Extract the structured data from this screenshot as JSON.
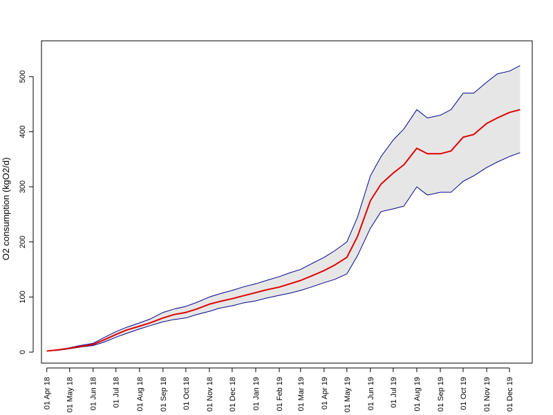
{
  "chart_data": {
    "type": "line",
    "title": "",
    "xlabel": "",
    "ylabel": "O2 consumption (kgO2/d)",
    "x_range": [
      "2018-03-25",
      "2019-12-31"
    ],
    "ylim": [
      -20,
      565
    ],
    "y_ticks": [
      0,
      100,
      200,
      300,
      400,
      500
    ],
    "x_ticks": [
      {
        "date": "2018-04-01",
        "label": "01 Apr 18"
      },
      {
        "date": "2018-05-01",
        "label": "01 May 18"
      },
      {
        "date": "2018-06-01",
        "label": "01 Jun 18"
      },
      {
        "date": "2018-07-01",
        "label": "01 Jul 18"
      },
      {
        "date": "2018-08-01",
        "label": "01 Aug 18"
      },
      {
        "date": "2018-09-01",
        "label": "01 Sep 18"
      },
      {
        "date": "2018-10-01",
        "label": "01 Oct 18"
      },
      {
        "date": "2018-11-01",
        "label": "01 Nov 18"
      },
      {
        "date": "2018-12-01",
        "label": "01 Dec 18"
      },
      {
        "date": "2019-01-01",
        "label": "01 Jan 19"
      },
      {
        "date": "2019-02-01",
        "label": "01 Feb 19"
      },
      {
        "date": "2019-03-01",
        "label": "01 Mar 19"
      },
      {
        "date": "2019-04-01",
        "label": "01 Apr 19"
      },
      {
        "date": "2019-05-01",
        "label": "01 May 19"
      },
      {
        "date": "2019-06-01",
        "label": "01 Jun 19"
      },
      {
        "date": "2019-07-01",
        "label": "01 Jul 19"
      },
      {
        "date": "2019-08-01",
        "label": "01 Aug 19"
      },
      {
        "date": "2019-09-01",
        "label": "01 Sep 19"
      },
      {
        "date": "2019-10-01",
        "label": "01 Oct 19"
      },
      {
        "date": "2019-11-01",
        "label": "01 Nov 19"
      },
      {
        "date": "2019-12-01",
        "label": "01 Dec 19"
      }
    ],
    "band_fill_color": "#e6e6e6",
    "series": [
      {
        "role": "lower_bound",
        "color": "#00008b",
        "x": [
          "2018-04-01",
          "2018-04-15",
          "2018-05-01",
          "2018-05-15",
          "2018-06-01",
          "2018-06-15",
          "2018-07-01",
          "2018-07-15",
          "2018-08-01",
          "2018-08-15",
          "2018-09-01",
          "2018-09-15",
          "2018-10-01",
          "2018-10-15",
          "2018-11-01",
          "2018-11-15",
          "2018-12-01",
          "2018-12-15",
          "2019-01-01",
          "2019-01-15",
          "2019-02-01",
          "2019-02-15",
          "2019-03-01",
          "2019-03-15",
          "2019-04-01",
          "2019-04-15",
          "2019-05-01",
          "2019-05-15",
          "2019-06-01",
          "2019-06-15",
          "2019-07-01",
          "2019-07-15",
          "2019-08-01",
          "2019-08-15",
          "2019-09-01",
          "2019-09-15",
          "2019-10-01",
          "2019-10-15",
          "2019-11-01",
          "2019-11-15",
          "2019-12-01",
          "2019-12-15"
        ],
        "y": [
          2,
          3,
          6,
          9,
          12,
          18,
          27,
          34,
          42,
          48,
          55,
          59,
          62,
          68,
          74,
          80,
          84,
          89,
          93,
          98,
          103,
          107,
          112,
          118,
          126,
          132,
          142,
          175,
          225,
          255,
          260,
          265,
          300,
          285,
          290,
          290,
          310,
          320,
          335,
          345,
          355,
          362
        ]
      },
      {
        "role": "mean",
        "color": "#e00000",
        "x": [
          "2018-04-01",
          "2018-04-15",
          "2018-05-01",
          "2018-05-15",
          "2018-06-01",
          "2018-06-15",
          "2018-07-01",
          "2018-07-15",
          "2018-08-01",
          "2018-08-15",
          "2018-09-01",
          "2018-09-15",
          "2018-10-01",
          "2018-10-15",
          "2018-11-01",
          "2018-11-15",
          "2018-12-01",
          "2018-12-15",
          "2019-01-01",
          "2019-01-15",
          "2019-02-01",
          "2019-02-15",
          "2019-03-01",
          "2019-03-15",
          "2019-04-01",
          "2019-04-15",
          "2019-05-01",
          "2019-05-15",
          "2019-06-01",
          "2019-06-15",
          "2019-07-01",
          "2019-07-15",
          "2019-08-01",
          "2019-08-15",
          "2019-09-01",
          "2019-09-15",
          "2019-10-01",
          "2019-10-15",
          "2019-11-01",
          "2019-11-15",
          "2019-12-01",
          "2019-12-15"
        ],
        "y": [
          2,
          4,
          7,
          10,
          14,
          22,
          32,
          40,
          47,
          53,
          62,
          68,
          72,
          78,
          87,
          92,
          97,
          102,
          108,
          113,
          118,
          124,
          130,
          138,
          148,
          158,
          172,
          210,
          275,
          305,
          325,
          340,
          370,
          360,
          360,
          365,
          390,
          395,
          415,
          425,
          435,
          440
        ]
      },
      {
        "role": "upper_bound",
        "color": "#00008b",
        "x": [
          "2018-04-01",
          "2018-04-15",
          "2018-05-01",
          "2018-05-15",
          "2018-06-01",
          "2018-06-15",
          "2018-07-01",
          "2018-07-15",
          "2018-08-01",
          "2018-08-15",
          "2018-09-01",
          "2018-09-15",
          "2018-10-01",
          "2018-10-15",
          "2018-11-01",
          "2018-11-15",
          "2018-12-01",
          "2018-12-15",
          "2019-01-01",
          "2019-01-15",
          "2019-02-01",
          "2019-02-15",
          "2019-03-01",
          "2019-03-15",
          "2019-04-01",
          "2019-04-15",
          "2019-05-01",
          "2019-05-15",
          "2019-06-01",
          "2019-06-15",
          "2019-07-01",
          "2019-07-15",
          "2019-08-01",
          "2019-08-15",
          "2019-09-01",
          "2019-09-15",
          "2019-10-01",
          "2019-10-15",
          "2019-11-01",
          "2019-11-15",
          "2019-12-01",
          "2019-12-15"
        ],
        "y": [
          2,
          4,
          8,
          12,
          16,
          26,
          37,
          45,
          53,
          60,
          72,
          78,
          83,
          90,
          100,
          106,
          112,
          118,
          124,
          130,
          137,
          144,
          150,
          160,
          172,
          184,
          200,
          245,
          320,
          355,
          385,
          405,
          440,
          425,
          430,
          440,
          470,
          470,
          490,
          505,
          510,
          520
        ]
      }
    ]
  }
}
